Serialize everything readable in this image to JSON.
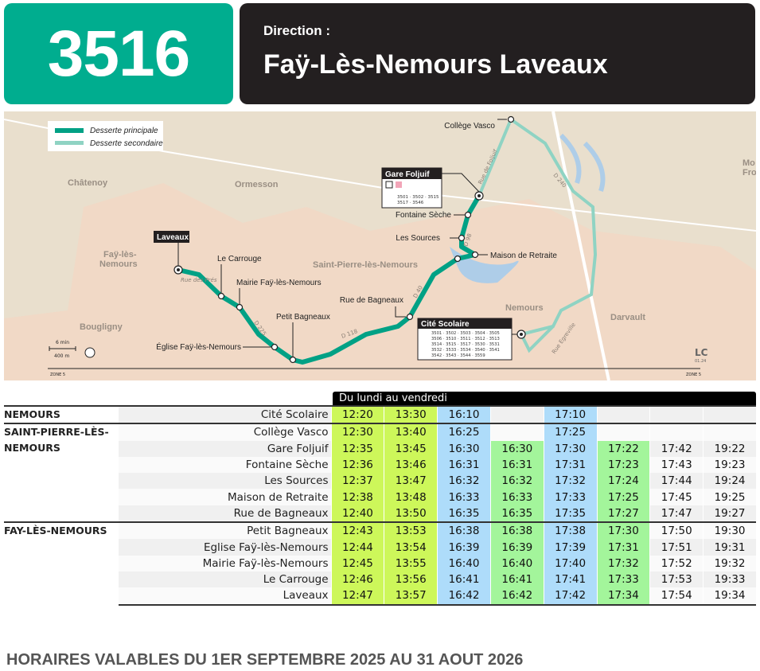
{
  "header": {
    "line_number": "3516",
    "direction_label": "Direction :",
    "destination": "Faÿ-Lès-Nemours Laveaux",
    "brand_color": "#00ad8f"
  },
  "map": {
    "legend": {
      "main": "Desserte principale",
      "secondary": "Desserte secondaire"
    },
    "towns": [
      "Châtenoy",
      "Ormesson",
      "Faÿ-lès-",
      "Nemours",
      "Saint-Pierre-lès-Nemours",
      "Nemours",
      "Bougligny",
      "Darvault",
      "Mo",
      "Fro"
    ],
    "stops": {
      "laveaux": "Laveaux",
      "carrouge": "Le Carrouge",
      "mairie": "Mairie Faÿ-lès-Nemours",
      "bagneaux_petit": "Petit Bagneaux",
      "eglise": "Église Faÿ-lès-Nemours",
      "rue_bagneaux": "Rue de Bagneaux",
      "cite": "Cité Scolaire",
      "retraite": "Maison de Retraite",
      "sources": "Les Sources",
      "fontaine": "Fontaine Sèche",
      "gare": "Gare Foljuif",
      "vasco": "Collège Vasco"
    },
    "gare_lines": [
      "3501 · 3502 · 3515",
      "3517 · 3546"
    ],
    "cite_lines": [
      "3501 · 3502 · 3503 · 3504 · 3505",
      "3506 · 3510 · 3511 · 3512 · 3513",
      "3514 · 3515 · 3517 · 3530 · 3531",
      "3532 · 3533 · 3534 · 3540 · 3541",
      "3542 · 3543 · 3544 · 3559"
    ],
    "roads": [
      "Rue des Prés",
      "Rue de Foljuif",
      "D 40",
      "D 118",
      "D 225",
      "Rue Egreville",
      "D 240",
      "D 98"
    ],
    "scale": {
      "time": "6 min",
      "distance": "400 m"
    },
    "zone_left": "ZONE 5",
    "zone_right": "ZONE 5",
    "logo": "LC",
    "logo_date": "01.24"
  },
  "timetable": {
    "period": "Du lundi au vendredi",
    "rows": [
      {
        "town": "NEMOURS",
        "stop": "Cité Scolaire",
        "times": [
          "12:20",
          "13:30",
          "16:10",
          "",
          "17:10",
          "",
          "",
          ""
        ]
      },
      {
        "town": "SAINT-PIERRE-LÈS-NEMOURS",
        "stop": "Collège Vasco",
        "times": [
          "12:30",
          "13:40",
          "16:25",
          "",
          "17:25",
          "",
          "",
          ""
        ]
      },
      {
        "town": "",
        "stop": "Gare Foljuif",
        "times": [
          "12:35",
          "13:45",
          "16:30",
          "16:30",
          "17:30",
          "17:22",
          "17:42",
          "19:22"
        ]
      },
      {
        "town": "",
        "stop": "Fontaine Sèche",
        "times": [
          "12:36",
          "13:46",
          "16:31",
          "16:31",
          "17:31",
          "17:23",
          "17:43",
          "19:23"
        ]
      },
      {
        "town": "",
        "stop": "Les Sources",
        "times": [
          "12:37",
          "13:47",
          "16:32",
          "16:32",
          "17:32",
          "17:24",
          "17:44",
          "19:24"
        ]
      },
      {
        "town": "",
        "stop": "Maison de Retraite",
        "times": [
          "12:38",
          "13:48",
          "16:33",
          "16:33",
          "17:33",
          "17:25",
          "17:45",
          "19:25"
        ]
      },
      {
        "town": "",
        "stop": "Rue de Bagneaux",
        "times": [
          "12:40",
          "13:50",
          "16:35",
          "16:35",
          "17:35",
          "17:27",
          "17:47",
          "19:27"
        ]
      },
      {
        "town": "FAY-LÈS-NEMOURS",
        "stop": "Petit Bagneaux",
        "times": [
          "12:43",
          "13:53",
          "16:38",
          "16:38",
          "17:38",
          "17:30",
          "17:50",
          "19:30"
        ]
      },
      {
        "town": "",
        "stop": "Eglise Faÿ-lès-Nemours",
        "times": [
          "12:44",
          "13:54",
          "16:39",
          "16:39",
          "17:39",
          "17:31",
          "17:51",
          "19:31"
        ]
      },
      {
        "town": "",
        "stop": "Mairie Faÿ-lès-Nemours",
        "times": [
          "12:45",
          "13:55",
          "16:40",
          "16:40",
          "17:40",
          "17:32",
          "17:52",
          "19:32"
        ]
      },
      {
        "town": "",
        "stop": "Le Carrouge",
        "times": [
          "12:46",
          "13:56",
          "16:41",
          "16:41",
          "17:41",
          "17:33",
          "17:53",
          "19:33"
        ]
      },
      {
        "town": "",
        "stop": "Laveaux",
        "times": [
          "12:47",
          "13:57",
          "16:42",
          "16:42",
          "17:42",
          "17:34",
          "17:54",
          "19:34"
        ]
      }
    ],
    "column_colors": [
      "#cdf75a",
      "#cdf75a",
      "#aedcfa",
      "#a3f59b",
      "#aedcfa",
      "#a3f59b",
      "",
      ""
    ]
  },
  "footer": "HORAIRES VALABLES DU 1ER SEPTEMBRE 2025 AU 31 AOUT 2026"
}
